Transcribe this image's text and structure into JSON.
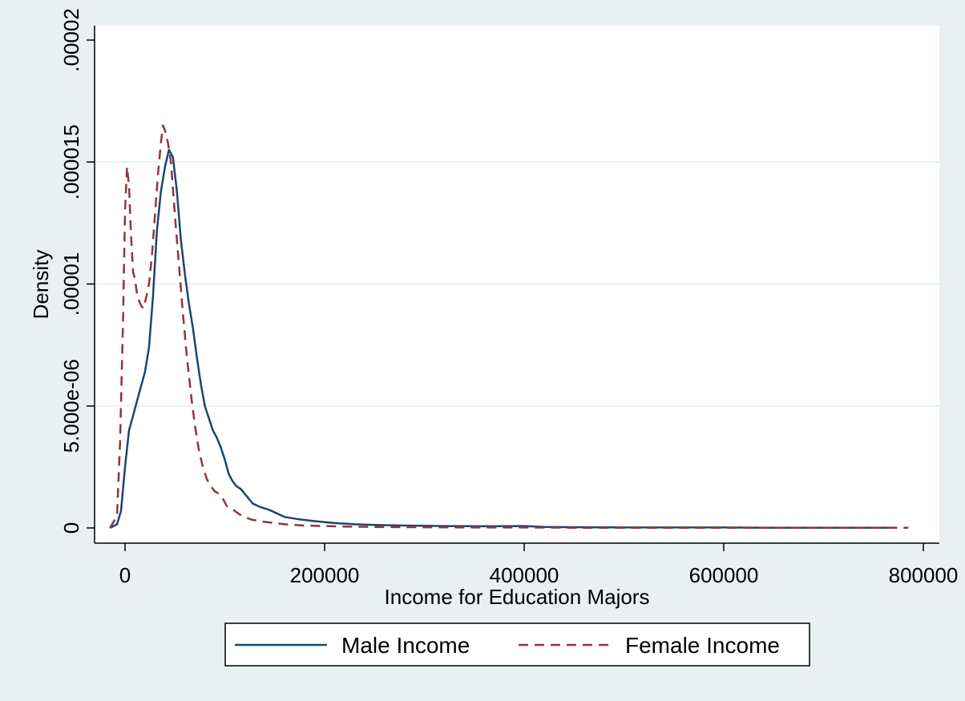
{
  "chart_data": {
    "type": "line",
    "title": "",
    "xlabel": "Income for Education Majors",
    "ylabel": "Density",
    "xlim": [
      -20000,
      800000
    ],
    "ylim": [
      0,
      2e-05
    ],
    "x_ticks": [
      0,
      200000,
      400000,
      600000,
      800000
    ],
    "x_tick_labels": [
      "0",
      "200000",
      "400000",
      "600000",
      "800000"
    ],
    "y_ticks": [
      0,
      5e-06,
      1e-05,
      1.5e-05,
      2e-05
    ],
    "y_tick_labels": [
      "0",
      "5.000e-06",
      ".00001",
      ".000015",
      ".00002"
    ],
    "grid": "horizontal",
    "legend": "bottom",
    "series": [
      {
        "name": "Male Income",
        "color": "#1a476f",
        "style": "solid",
        "x": [
          -15000,
          -8000,
          -4000,
          0,
          4000,
          8000,
          12000,
          16000,
          20000,
          24000,
          28000,
          32000,
          36000,
          40000,
          44000,
          48000,
          52000,
          56000,
          60000,
          64000,
          68000,
          72000,
          76000,
          80000,
          84000,
          88000,
          92000,
          96000,
          100000,
          104000,
          108000,
          112000,
          116000,
          120000,
          128000,
          136000,
          144000,
          152000,
          160000,
          175000,
          190000,
          210000,
          230000,
          250000,
          280000,
          320000,
          360000,
          400000,
          420000,
          460000,
          500000,
          550000,
          600000,
          650000,
          700000,
          740000,
          770000
        ],
        "y": [
          0,
          1.5e-07,
          7e-07,
          2.5e-06,
          4e-06,
          4.6e-06,
          5.2e-06,
          5.8e-06,
          6.4e-06,
          7.4e-06,
          9.5e-06,
          1.22e-05,
          1.38e-05,
          1.48e-05,
          1.55e-05,
          1.52e-05,
          1.38e-05,
          1.18e-05,
          1.04e-05,
          9.2e-06,
          8.2e-06,
          7e-06,
          5.9e-06,
          5e-06,
          4.5e-06,
          4e-06,
          3.7e-06,
          3.3e-06,
          2.8e-06,
          2.2e-06,
          1.9e-06,
          1.7e-06,
          1.6e-06,
          1.4e-06,
          1e-06,
          8.5e-07,
          7.5e-07,
          6e-07,
          4.5e-07,
          3.5e-07,
          2.8e-07,
          2e-07,
          1.5e-07,
          1.2e-07,
          1e-07,
          8e-08,
          7e-08,
          8e-08,
          4e-08,
          3e-08,
          2e-08,
          2e-08,
          2e-08,
          1e-08,
          1e-08,
          1e-08,
          1e-08
        ]
      },
      {
        "name": "Female Income",
        "color": "#90353b",
        "style": "dashed",
        "x": [
          -15000,
          -8000,
          -5000,
          -2000,
          0,
          2000,
          4000,
          6000,
          8000,
          10000,
          12000,
          15000,
          18000,
          21000,
          24000,
          27000,
          30000,
          33000,
          36000,
          38000,
          40000,
          43000,
          46000,
          50000,
          54000,
          58000,
          62000,
          66000,
          70000,
          74000,
          78000,
          82000,
          86000,
          90000,
          94000,
          98000,
          102000,
          106000,
          110000,
          115000,
          120000,
          126000,
          132000,
          140000,
          150000,
          160000,
          170000,
          180000,
          200000,
          220000,
          250000,
          300000,
          350000,
          400000,
          450000,
          500000,
          600000,
          700000,
          785000
        ],
        "y": [
          0,
          5e-07,
          3.5e-06,
          8.5e-06,
          1.3e-05,
          1.48e-05,
          1.4e-05,
          1.2e-05,
          1.05e-05,
          1.02e-05,
          9.6e-06,
          9.2e-06,
          9e-06,
          9.4e-06,
          1e-05,
          1.12e-05,
          1.28e-05,
          1.45e-05,
          1.58e-05,
          1.65e-05,
          1.63e-05,
          1.58e-05,
          1.5e-05,
          1.28e-05,
          1.08e-05,
          8.8e-06,
          7e-06,
          5.5e-06,
          4.2e-06,
          3.2e-06,
          2.5e-06,
          2e-06,
          1.7e-06,
          1.5e-06,
          1.4e-06,
          1.2e-06,
          9e-07,
          8e-07,
          7e-07,
          5.5e-07,
          4.5e-07,
          3.5e-07,
          3e-07,
          2.5e-07,
          2e-07,
          1.5e-07,
          1.2e-07,
          1e-07,
          8e-08,
          6e-08,
          4e-08,
          3e-08,
          2e-08,
          2e-08,
          1e-08,
          1e-08,
          1e-08,
          1e-08,
          1e-08
        ]
      }
    ]
  }
}
